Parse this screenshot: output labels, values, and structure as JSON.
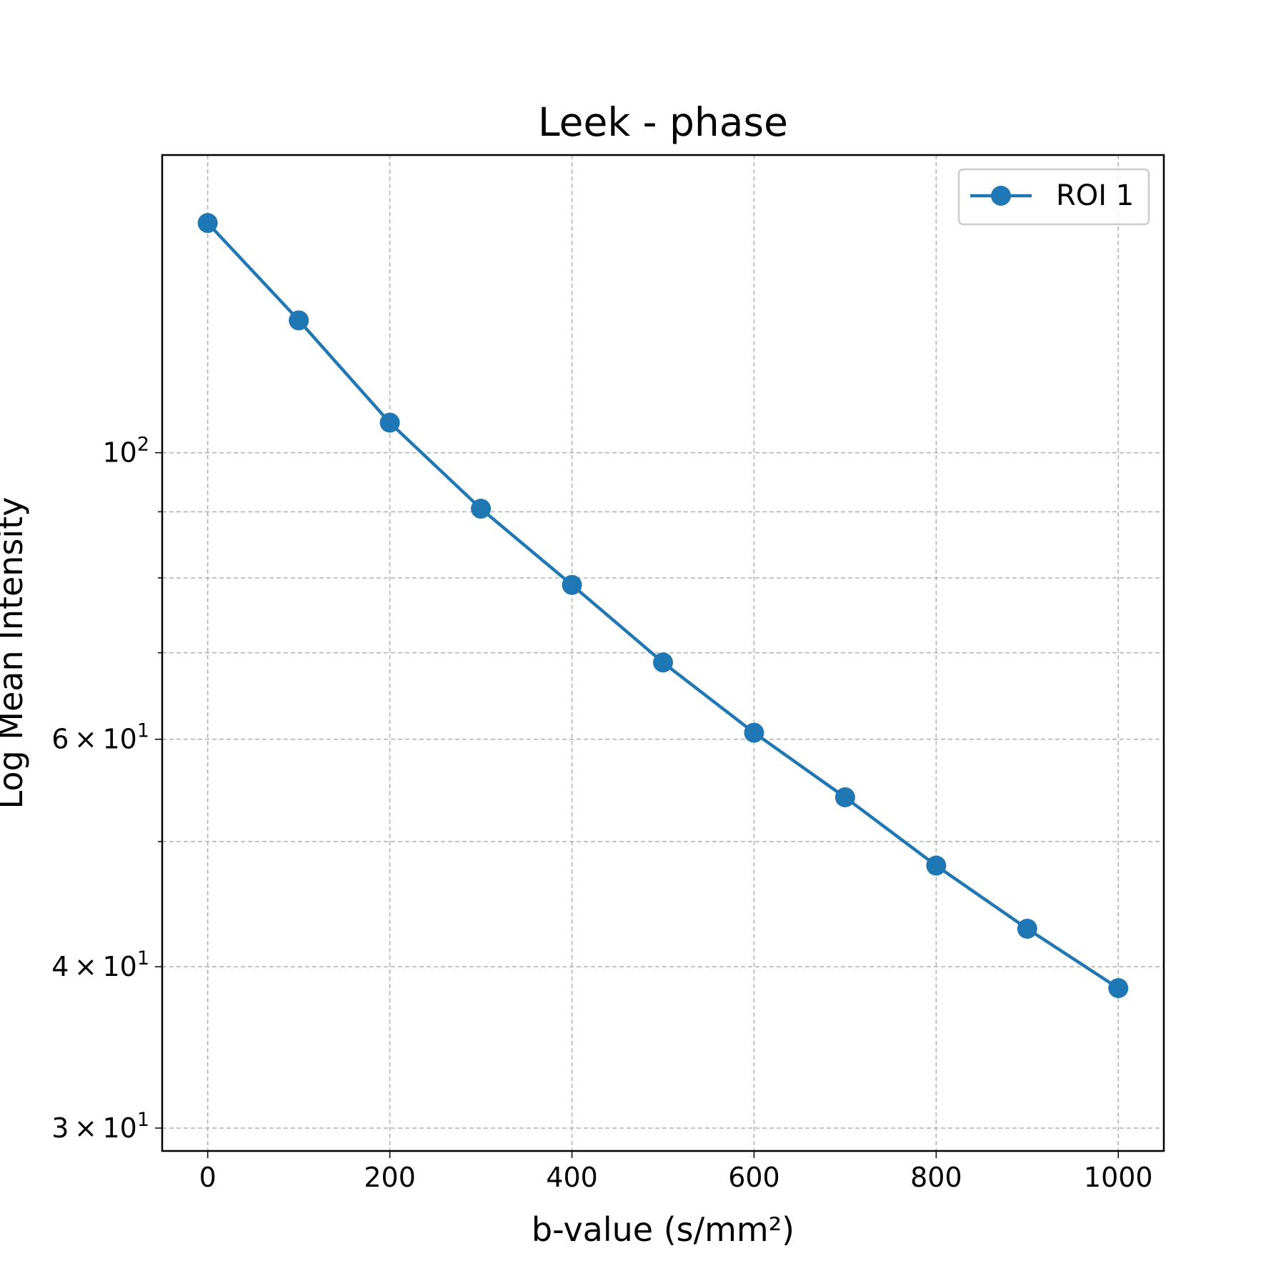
{
  "chart_data": {
    "type": "line",
    "title": "Leek - phase",
    "xlabel": "b-value (s/mm²)",
    "ylabel": "Log Mean Intensity",
    "yscale": "log",
    "xlim": [
      -50,
      1050
    ],
    "ylim": [
      28.8,
      170
    ],
    "xticks": [
      0,
      200,
      400,
      600,
      800,
      1000
    ],
    "xtick_labels": [
      "0",
      "200",
      "400",
      "600",
      "800",
      "1000"
    ],
    "yticks_major": [
      {
        "value": 30,
        "mantissa": "3",
        "exp": "1"
      },
      {
        "value": 40,
        "mantissa": "4",
        "exp": "1"
      },
      {
        "value": 60,
        "mantissa": "6",
        "exp": "1"
      },
      {
        "value": 100,
        "mantissa": "",
        "exp": "2"
      }
    ],
    "yticks_minor": [
      50,
      70,
      80,
      90
    ],
    "grid": true,
    "legend_position": "upper right",
    "series": [
      {
        "name": "ROI 1",
        "color": "#1f77b4",
        "marker": "circle",
        "x": [
          0,
          100,
          200,
          300,
          400,
          500,
          600,
          700,
          800,
          900,
          1000
        ],
        "y": [
          150.6,
          126.6,
          105.5,
          90.5,
          79.0,
          68.8,
          60.7,
          54.1,
          47.9,
          42.8,
          38.5
        ]
      }
    ]
  }
}
